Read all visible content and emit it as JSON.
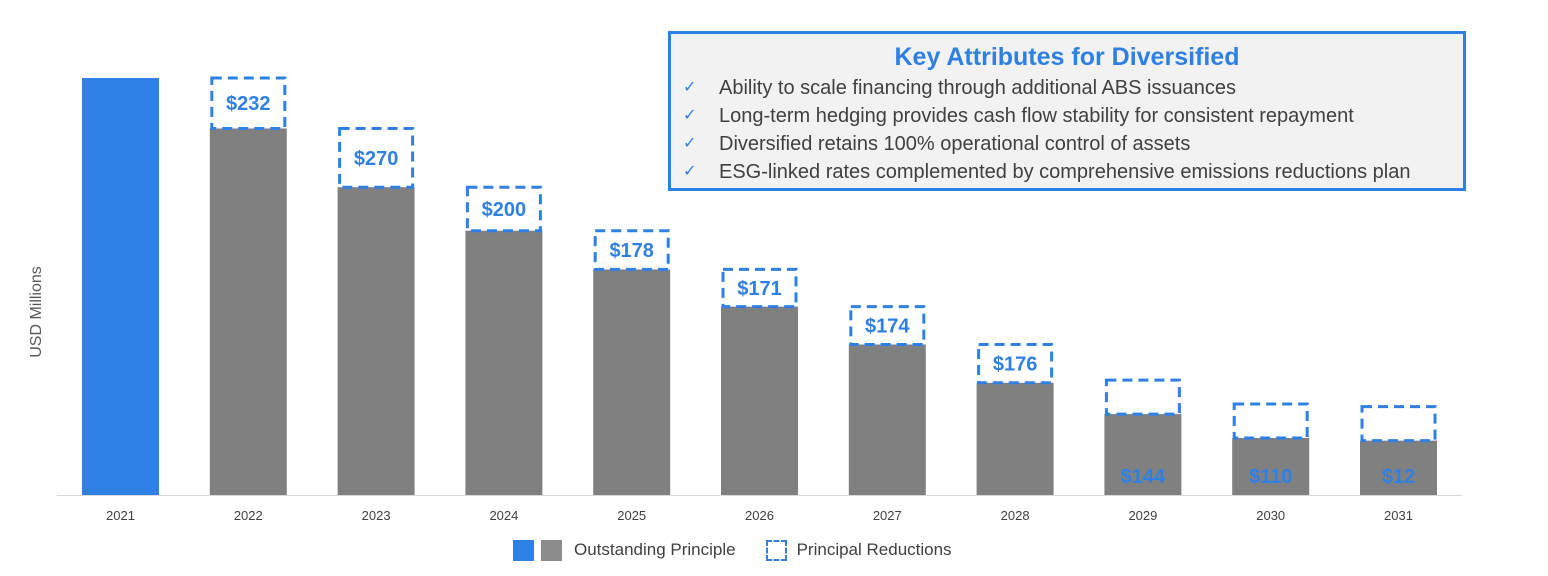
{
  "chart_data": {
    "type": "bar",
    "ylabel": "USD Millions",
    "categories": [
      "2021",
      "2022",
      "2023",
      "2024",
      "2025",
      "2026",
      "2027",
      "2028",
      "2029",
      "2030",
      "2031"
    ],
    "series": [
      {
        "name": "Outstanding Principle",
        "values": [
          1917,
          1685,
          1415,
          1215,
          1037,
          866,
          692,
          516,
          372,
          262,
          250
        ]
      },
      {
        "name": "Principal Reductions",
        "values": [
          null,
          232,
          270,
          200,
          178,
          171,
          174,
          176,
          144,
          110,
          12
        ]
      }
    ],
    "reduction_labels": [
      "",
      "$232",
      "$270",
      "$200",
      "$178",
      "$171",
      "$174",
      "$176",
      "$144",
      "$110",
      "$12"
    ],
    "ylim": [
      0,
      1917
    ],
    "highlight_first_bar": true,
    "legend": {
      "position": "bottom-center",
      "outstanding_label": "Outstanding Principle",
      "reductions_label": "Principal Reductions"
    }
  },
  "key_attributes": {
    "title": "Key Attributes for Diversified",
    "check_glyph": "✓",
    "items": [
      "Ability to scale financing through additional ABS issuances",
      "Long-term hedging provides cash flow stability for consistent repayment",
      "Diversified retains 100% operational control of assets",
      "ESG-linked rates complemented by comprehensive emissions reductions plan"
    ]
  },
  "colors": {
    "accent": "#2f80e5",
    "bar_gray": "#808080",
    "text": "#404040"
  }
}
